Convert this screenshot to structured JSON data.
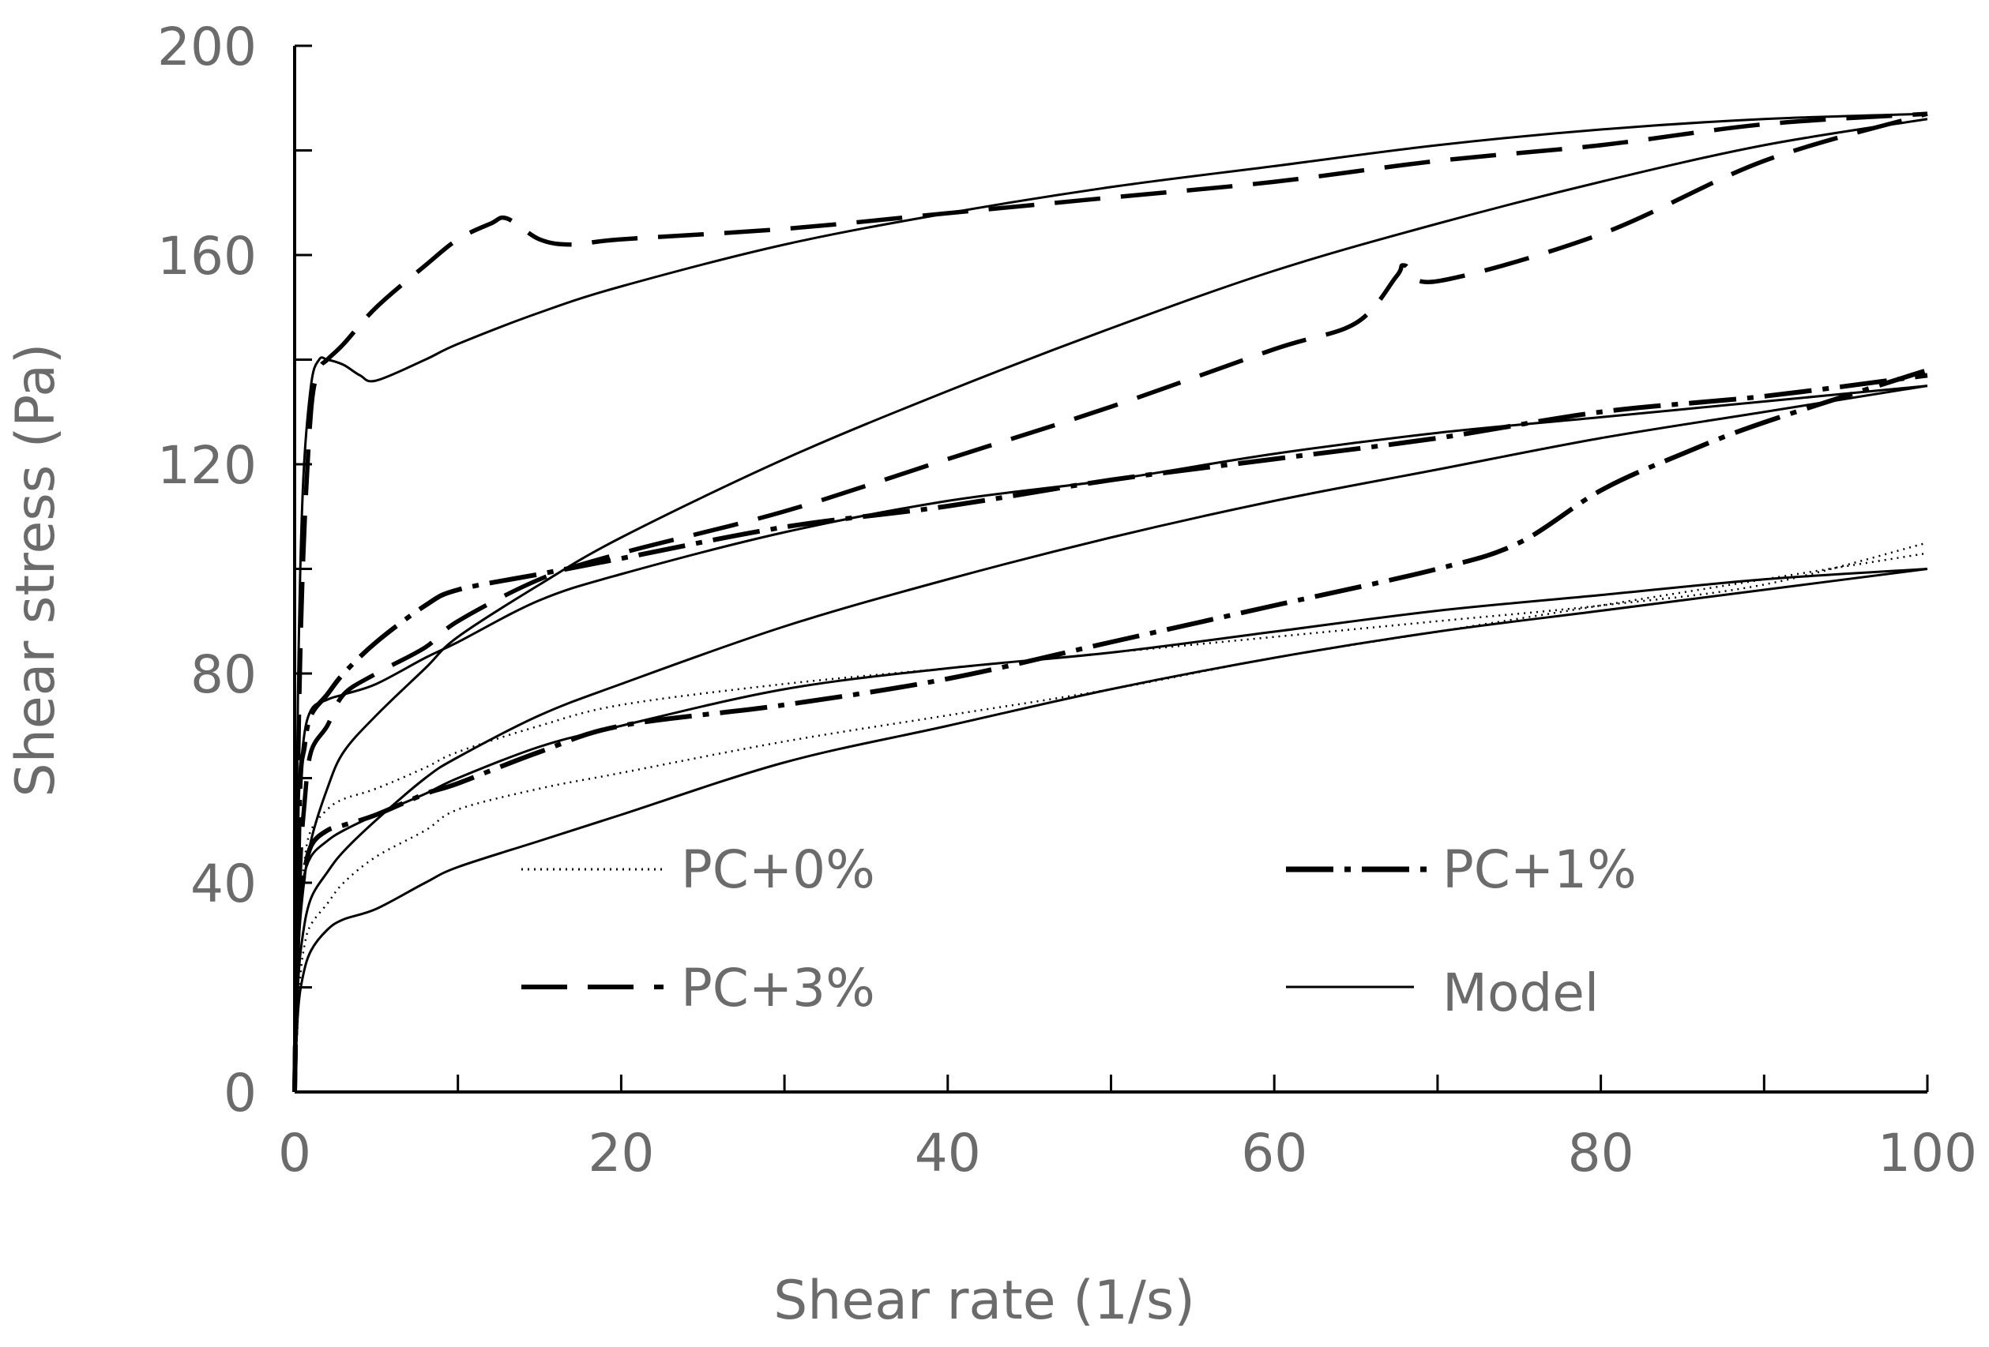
{
  "chart_data": {
    "type": "line",
    "title": "",
    "xlabel": "Shear rate (1/s)",
    "ylabel": "Shear stress (Pa)",
    "xlim": [
      0,
      100
    ],
    "ylim": [
      0,
      200
    ],
    "x_major_ticks": [
      0,
      20,
      40,
      60,
      80,
      100
    ],
    "x_minor_ticks": [
      10,
      30,
      50,
      70,
      90
    ],
    "y_major_ticks": [
      0,
      40,
      80,
      120,
      160,
      200
    ],
    "y_minor_ticks": [
      20,
      60,
      100,
      140,
      180
    ],
    "x_tick_labels": [
      "0",
      "20",
      "40",
      "60",
      "80",
      "100"
    ],
    "y_tick_labels": [
      "0",
      "40",
      "80",
      "120",
      "160",
      "200"
    ],
    "grid": false,
    "legend_position": "inside-bottom",
    "legend": [
      {
        "label": "PC+0%",
        "series": "PC+0%"
      },
      {
        "label": "PC+1%",
        "series": "PC+1%"
      },
      {
        "label": "PC+3%",
        "series": "PC+3%"
      },
      {
        "label": "Model",
        "series": "Model"
      }
    ],
    "series": [
      {
        "name": "PC+0%",
        "style": "dotted",
        "branches": [
          {
            "x": [
              0,
              0.3,
              0.6,
              1,
              2,
              3,
              5,
              8,
              10,
              15,
              20,
              30,
              40,
              50,
              60,
              70,
              80,
              90,
              100
            ],
            "y": [
              0,
              20,
              28,
              32,
              36,
              40,
              45,
              50,
              54,
              58,
              61,
              67,
              72,
              77,
              83,
              88,
              93,
              98,
              103
            ]
          },
          {
            "x": [
              0,
              0.3,
              0.6,
              1,
              2,
              3,
              5,
              8,
              10,
              15,
              20,
              30,
              40,
              50,
              60,
              70,
              80,
              90,
              100
            ],
            "y": [
              0,
              32,
              44,
              50,
              54,
              56,
              58,
              62,
              65,
              70,
              74,
              78,
              81,
              84,
              87,
              90,
              93,
              97,
              105
            ]
          }
        ]
      },
      {
        "name": "PC+1%",
        "style": "dash-dot",
        "branches": [
          {
            "x": [
              0,
              0.2,
              0.5,
              1,
              2,
              3,
              5,
              8,
              10,
              15,
              20,
              30,
              40,
              50,
              60,
              70,
              75,
              80,
              85,
              90,
              100
            ],
            "y": [
              0,
              30,
              40,
              47,
              50,
              51,
              53,
              57,
              59,
              65,
              70,
              74,
              79,
              86,
              93,
              100,
              105,
              115,
              122,
              128,
              138
            ]
          },
          {
            "x": [
              0,
              0.3,
              0.6,
              1,
              2,
              3,
              5,
              8,
              10,
              15,
              20,
              30,
              40,
              50,
              60,
              70,
              80,
              90,
              100
            ],
            "y": [
              0,
              55,
              66,
              72,
              76,
              80,
              86,
              93,
              96,
              99,
              102,
              108,
              112,
              117,
              121,
              125,
              130,
              133,
              137
            ]
          }
        ]
      },
      {
        "name": "PC+3%",
        "style": "dashed",
        "branches": [
          {
            "x": [
              0,
              0.3,
              0.6,
              1,
              2,
              3,
              5,
              8,
              10,
              15,
              20,
              30,
              40,
              50,
              60,
              65,
              67.5,
              68,
              70,
              80,
              90,
              100
            ],
            "y": [
              0,
              40,
              55,
              65,
              70,
              76,
              80,
              85,
              90,
              98,
              103,
              111,
              121,
              131,
              142,
              147,
              156,
              158,
              155,
              164,
              178,
              187
            ]
          },
          {
            "x": [
              0,
              0.2,
              0.5,
              1,
              1.5,
              2,
              3,
              5,
              8,
              10,
              12,
              13,
              15,
              17,
              20,
              30,
              40,
              50,
              60,
              70,
              80,
              90,
              100
            ],
            "y": [
              0,
              60,
              100,
              130,
              138,
              140,
              143,
              150,
              158,
              163,
              166,
              167,
              163,
              162,
              163,
              165,
              168,
              171,
              174,
              178,
              181,
              185,
              187
            ]
          }
        ]
      },
      {
        "name": "Model",
        "style": "solid",
        "branches": [
          {
            "x": [
              0,
              0.2,
              0.5,
              1,
              2,
              3,
              5,
              8,
              10,
              15,
              20,
              30,
              40,
              50,
              60,
              70,
              80,
              90,
              100
            ],
            "y": [
              0,
              15,
              22,
              27,
              31,
              33,
              35,
              40,
              43,
              48,
              53,
              63,
              70,
              77,
              83,
              88,
              92,
              96,
              100
            ]
          },
          {
            "x": [
              0,
              0.2,
              0.5,
              1,
              2,
              3,
              5,
              8,
              10,
              15,
              20,
              30,
              40,
              50,
              60,
              70,
              80,
              90,
              100
            ],
            "y": [
              0,
              30,
              40,
              45,
              48,
              50,
              53,
              57,
              60,
              66,
              70,
              77,
              81,
              84,
              88,
              92,
              95,
              98,
              100
            ]
          },
          {
            "x": [
              0,
              0.2,
              0.5,
              1,
              2,
              3,
              5,
              8,
              10,
              15,
              20,
              30,
              40,
              50,
              60,
              70,
              80,
              90,
              100
            ],
            "y": [
              0,
              20,
              30,
              37,
              42,
              46,
              52,
              60,
              64,
              72,
              78,
              89,
              98,
              106,
              113,
              119,
              125,
              130,
              135
            ]
          },
          {
            "x": [
              0,
              0.2,
              0.5,
              1,
              2,
              3,
              5,
              8,
              10,
              15,
              20,
              30,
              40,
              50,
              60,
              70,
              80,
              90,
              100
            ],
            "y": [
              0,
              50,
              66,
              73,
              75,
              76,
              78,
              83,
              86,
              94,
              99,
              107,
              113,
              117,
              122,
              126,
              129,
              132,
              135
            ]
          },
          {
            "x": [
              0,
              0.2,
              0.5,
              1,
              2,
              3,
              5,
              8,
              10,
              15,
              20,
              30,
              40,
              50,
              60,
              70,
              80,
              90,
              100
            ],
            "y": [
              0,
              25,
              38,
              48,
              58,
              65,
              72,
              81,
              87,
              97,
              106,
              121,
              134,
              146,
              157,
              166,
              174,
              181,
              186
            ]
          },
          {
            "x": [
              0,
              0.2,
              0.5,
              1,
              1.5,
              2,
              3,
              4,
              5,
              8,
              10,
              15,
              20,
              30,
              40,
              50,
              60,
              70,
              80,
              90,
              100
            ],
            "y": [
              0,
              75,
              115,
              135,
              140,
              140,
              139,
              137,
              136,
              140,
              143,
              149,
              154,
              162,
              168,
              173,
              177,
              181,
              184,
              186,
              187
            ]
          }
        ]
      }
    ]
  }
}
